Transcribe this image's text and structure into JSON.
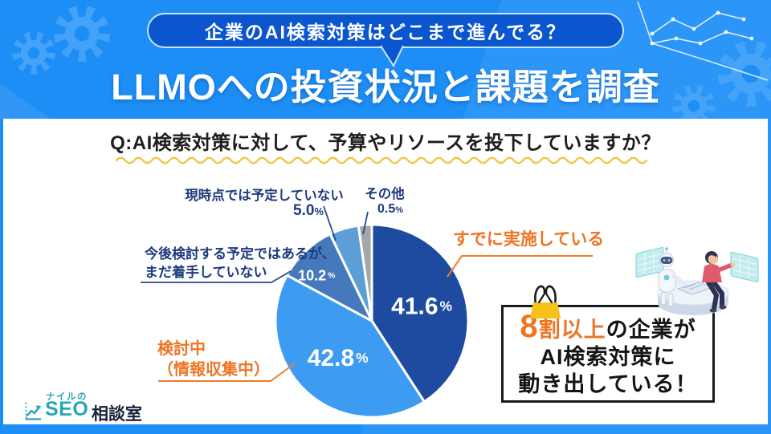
{
  "header": {
    "badge": "企業のAI検索対策はどこまで進んでる？",
    "title": "LLMOへの投資状況と課題を調査"
  },
  "question": "Q:AI検索対策に対して、予算やリソースを投下していますか？",
  "chart_data": {
    "type": "pie",
    "title": "AI検索対策に対して、予算やリソースを投下していますか？",
    "unit": "%",
    "labels": [
      "すでに実施している",
      "検討中（情報収集中）",
      "今後検討する予定ではあるが、まだ着手していない",
      "現時点では予定していない",
      "その他"
    ],
    "values": [
      41.6,
      42.8,
      10.2,
      5.0,
      0.5
    ],
    "colors": [
      "#1e4ba0",
      "#3d9bf2",
      "#4679bc",
      "#5b9fd6",
      "#a3a6aa"
    ],
    "start_angle_deg": 0,
    "direction": "clockwise",
    "legend_position": "callout-labels-around-pie"
  },
  "pie_annotations": {
    "already": "すでに実施している",
    "considering": "検討中\n（情報収集中）",
    "future": "今後検討する予定ではあるが、\nまだ着手していない",
    "not_planned": "現時点では予定していない",
    "other": "その他"
  },
  "callout": {
    "line1_highlight": "8",
    "line1_orange": "割以上",
    "line1_rest": "の企業が",
    "line2": "AI検索対策に",
    "line3": "動き出している！"
  },
  "logo": {
    "top": "ナイルの",
    "main": "SEO",
    "suffix": "相談室"
  },
  "colors": {
    "background_blue": "#1d8ef5",
    "badge_blue": "#0b56ce",
    "accent_orange": "#ee7524",
    "label_navy": "#1e3a7d",
    "wave_yellow": "#ecc94b",
    "logo_teal": "#29a5b5"
  }
}
